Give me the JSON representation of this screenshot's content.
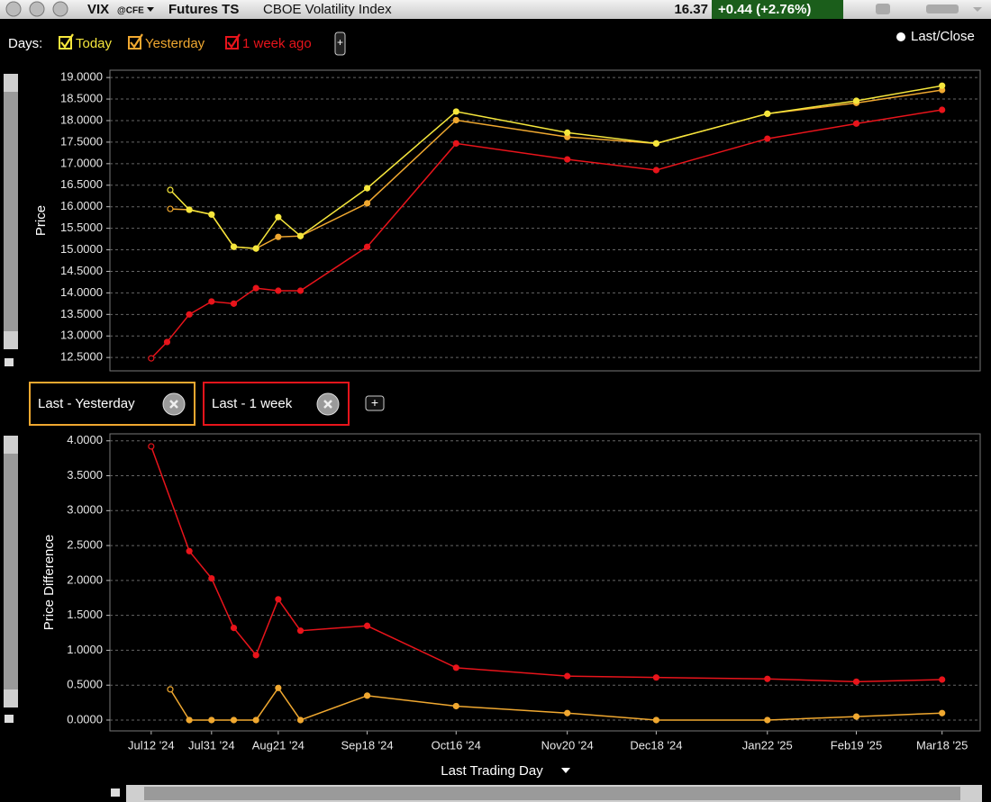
{
  "header": {
    "symbol": "VIX",
    "exchange": "@CFE",
    "view": "Futures TS",
    "description": "CBOE Volatility Index",
    "last": "16.37",
    "change": "+0.44 (+2.76%)"
  },
  "toolbar": {
    "days_label": "Days:",
    "last_close": "Last/Close"
  },
  "x_axis": {
    "label": "Last Trading Day",
    "xlim": [
      "2024-06-29",
      "2025-03-30"
    ],
    "ticks": [
      {
        "value": "2024-07-12",
        "label": "Jul12 '24"
      },
      {
        "value": "2024-07-31",
        "label": "Jul31 '24"
      },
      {
        "value": "2024-08-21",
        "label": "Aug21 '24"
      },
      {
        "value": "2024-09-18",
        "label": "Sep18 '24"
      },
      {
        "value": "2024-10-16",
        "label": "Oct16 '24"
      },
      {
        "value": "2024-11-20",
        "label": "Nov20 '24"
      },
      {
        "value": "2024-12-18",
        "label": "Dec18 '24"
      },
      {
        "value": "2025-01-22",
        "label": "Jan22 '25"
      },
      {
        "value": "2025-02-19",
        "label": "Feb19 '25"
      },
      {
        "value": "2025-03-18",
        "label": "Mar18 '25"
      }
    ]
  },
  "charts": [
    {
      "type": "line",
      "ylabel": "Price",
      "ylim": [
        12.19,
        19.17
      ],
      "yticks": [
        {
          "value": 12.5,
          "label": "12.5000"
        },
        {
          "value": 13,
          "label": "13.0000"
        },
        {
          "value": 13.5,
          "label": "13.5000"
        },
        {
          "value": 14,
          "label": "14.0000"
        },
        {
          "value": 14.5,
          "label": "14.5000"
        },
        {
          "value": 15,
          "label": "15.0000"
        },
        {
          "value": 15.5,
          "label": "15.5000"
        },
        {
          "value": 16,
          "label": "16.0000"
        },
        {
          "value": 16.5,
          "label": "16.5000"
        },
        {
          "value": 17,
          "label": "17.0000"
        },
        {
          "value": 17.5,
          "label": "17.5000"
        },
        {
          "value": 18,
          "label": "18.0000"
        },
        {
          "value": 18.5,
          "label": "18.5000"
        },
        {
          "value": 19,
          "label": "19.0000"
        }
      ],
      "grid": true,
      "series": [
        {
          "name": "1 week ago",
          "color": "#e8141b",
          "x": [
            "2024-07-12",
            "2024-07-17",
            "2024-07-24",
            "2024-07-31",
            "2024-08-07",
            "2024-08-14",
            "2024-08-21",
            "2024-08-28",
            "2024-09-18",
            "2024-10-16",
            "2024-11-20",
            "2024-12-18",
            "2025-01-22",
            "2025-02-19",
            "2025-03-18"
          ],
          "values": [
            12.48,
            12.86,
            13.5,
            13.8,
            13.75,
            14.11,
            14.05,
            14.05,
            15.07,
            17.47,
            17.1,
            16.85,
            17.58,
            17.93,
            18.25
          ]
        },
        {
          "name": "Yesterday",
          "color": "#f0a830",
          "x": [
            "2024-07-18",
            "2024-07-24",
            "2024-07-31",
            "2024-08-07",
            "2024-08-14",
            "2024-08-21",
            "2024-08-28",
            "2024-09-18",
            "2024-10-16",
            "2024-11-20",
            "2024-12-18",
            "2025-01-22",
            "2025-02-19",
            "2025-03-18"
          ],
          "values": [
            15.95,
            15.93,
            15.82,
            15.07,
            15.03,
            15.3,
            15.32,
            16.08,
            18.01,
            17.62,
            17.47,
            18.16,
            18.41,
            18.71
          ]
        },
        {
          "name": "Today",
          "color": "#f5e63c",
          "x": [
            "2024-07-18",
            "2024-07-24",
            "2024-07-31",
            "2024-08-07",
            "2024-08-14",
            "2024-08-21",
            "2024-08-28",
            "2024-09-18",
            "2024-10-16",
            "2024-11-20",
            "2024-12-18",
            "2025-01-22",
            "2025-02-19",
            "2025-03-18"
          ],
          "values": [
            16.39,
            15.93,
            15.82,
            15.07,
            15.03,
            15.76,
            15.32,
            16.43,
            18.21,
            17.72,
            17.47,
            18.16,
            18.46,
            18.81
          ]
        }
      ]
    },
    {
      "type": "line",
      "ylabel": "Price Difference",
      "ylim": [
        -0.155,
        4.1
      ],
      "yticks": [
        {
          "value": 0,
          "label": "0.0000"
        },
        {
          "value": 0.5,
          "label": "0.5000"
        },
        {
          "value": 1,
          "label": "1.0000"
        },
        {
          "value": 1.5,
          "label": "1.5000"
        },
        {
          "value": 2,
          "label": "2.0000"
        },
        {
          "value": 2.5,
          "label": "2.5000"
        },
        {
          "value": 3,
          "label": "3.0000"
        },
        {
          "value": 3.5,
          "label": "3.5000"
        },
        {
          "value": 4,
          "label": "4.0000"
        }
      ],
      "grid": true,
      "series": [
        {
          "name": "Last - Yesterday",
          "color": "#f0a830",
          "x": [
            "2024-07-18",
            "2024-07-24",
            "2024-07-31",
            "2024-08-07",
            "2024-08-14",
            "2024-08-21",
            "2024-08-28",
            "2024-09-18",
            "2024-10-16",
            "2024-11-20",
            "2024-12-18",
            "2025-01-22",
            "2025-02-19",
            "2025-03-18"
          ],
          "values": [
            0.44,
            0,
            0,
            0,
            0,
            0.46,
            0,
            0.35,
            0.2,
            0.1,
            0,
            0,
            0.05,
            0.1
          ]
        },
        {
          "name": "Last - 1 week",
          "color": "#e8141b",
          "x": [
            "2024-07-12",
            "2024-07-24",
            "2024-07-31",
            "2024-08-07",
            "2024-08-14",
            "2024-08-21",
            "2024-08-28",
            "2024-09-18",
            "2024-10-16",
            "2024-11-20",
            "2024-12-18",
            "2025-01-22",
            "2025-02-19",
            "2025-03-18"
          ],
          "values": [
            3.92,
            2.42,
            2.03,
            1.32,
            0.93,
            1.73,
            1.28,
            1.35,
            0.75,
            0.63,
            0.61,
            0.59,
            0.55,
            0.58
          ]
        }
      ]
    }
  ]
}
